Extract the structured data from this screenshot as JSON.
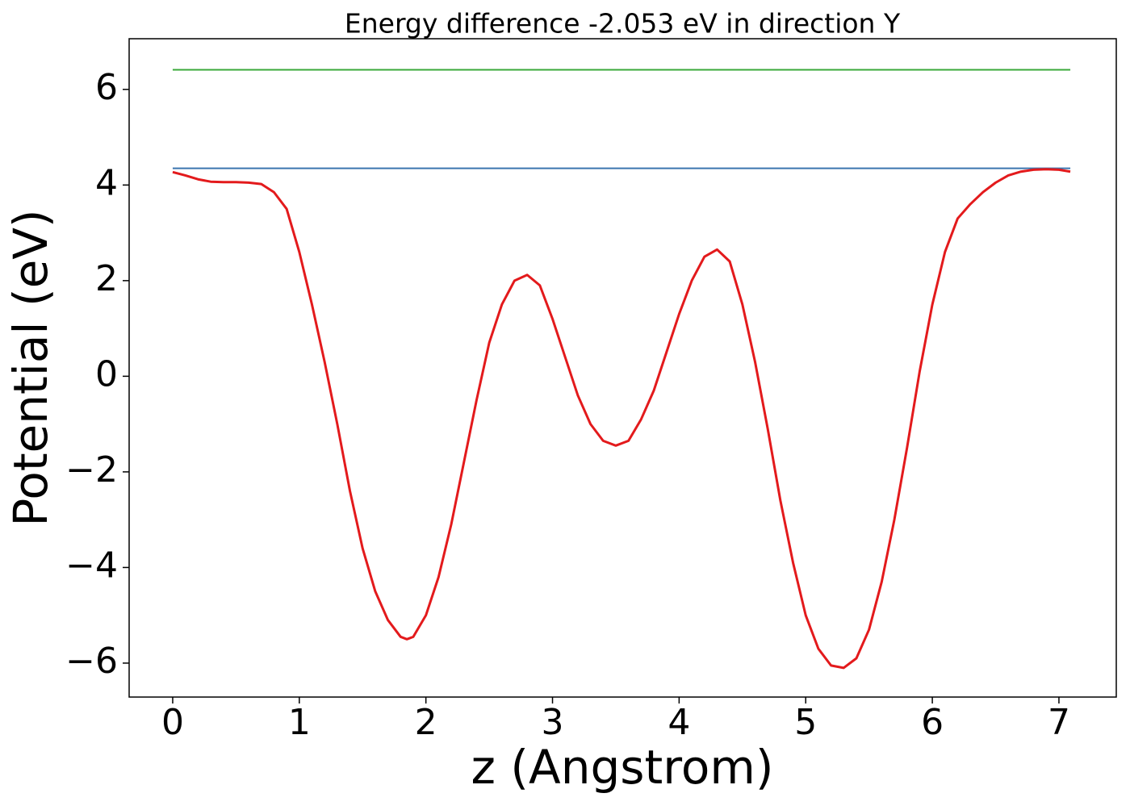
{
  "chart_data": {
    "type": "line",
    "title": "Energy difference -2.053 eV in direction Y",
    "xlabel": "z (Angstrom)",
    "ylabel": "Potential (eV)",
    "xlim": [
      -0.344,
      7.453
    ],
    "ylim": [
      -6.71,
      7.06
    ],
    "xticks": [
      0,
      1,
      2,
      3,
      4,
      5,
      6,
      7
    ],
    "yticks": [
      {
        "value": -6,
        "label": "−6"
      },
      {
        "value": -4,
        "label": "−4"
      },
      {
        "value": -2,
        "label": "−2"
      },
      0,
      2,
      4,
      6
    ],
    "grid": false,
    "series": [
      {
        "color": "#3b75af",
        "x": [
          0,
          7.09
        ],
        "values": [
          4.35,
          4.35
        ]
      },
      {
        "color": "#3aa83a",
        "x": [
          0,
          7.09
        ],
        "values": [
          6.41,
          6.41
        ]
      },
      {
        "color": "#e31a1c",
        "x": [
          0,
          0.1,
          0.2,
          0.3,
          0.4,
          0.5,
          0.6,
          0.7,
          0.8,
          0.9,
          1.0,
          1.1,
          1.2,
          1.3,
          1.4,
          1.5,
          1.6,
          1.7,
          1.8,
          1.85,
          1.9,
          2.0,
          2.1,
          2.2,
          2.3,
          2.4,
          2.5,
          2.6,
          2.7,
          2.8,
          2.9,
          3.0,
          3.1,
          3.2,
          3.3,
          3.4,
          3.5,
          3.6,
          3.7,
          3.8,
          3.9,
          4.0,
          4.1,
          4.2,
          4.3,
          4.4,
          4.5,
          4.6,
          4.7,
          4.8,
          4.9,
          5.0,
          5.1,
          5.2,
          5.3,
          5.4,
          5.5,
          5.6,
          5.7,
          5.8,
          5.9,
          6.0,
          6.1,
          6.2,
          6.3,
          6.4,
          6.5,
          6.6,
          6.7,
          6.8,
          6.9,
          7.0,
          7.09
        ],
        "values": [
          4.27,
          4.2,
          4.12,
          4.07,
          4.06,
          4.06,
          4.05,
          4.02,
          3.85,
          3.5,
          2.6,
          1.5,
          0.3,
          -1.0,
          -2.4,
          -3.6,
          -4.5,
          -5.1,
          -5.45,
          -5.5,
          -5.45,
          -5.0,
          -4.2,
          -3.1,
          -1.8,
          -0.5,
          0.7,
          1.5,
          2.0,
          2.12,
          1.9,
          1.2,
          0.4,
          -0.4,
          -1.0,
          -1.35,
          -1.45,
          -1.35,
          -0.9,
          -0.3,
          0.5,
          1.3,
          2.0,
          2.5,
          2.65,
          2.4,
          1.5,
          0.3,
          -1.1,
          -2.6,
          -3.9,
          -5.0,
          -5.7,
          -6.05,
          -6.1,
          -5.9,
          -5.3,
          -4.3,
          -3.0,
          -1.5,
          0.1,
          1.5,
          2.6,
          3.3,
          3.6,
          3.85,
          4.05,
          4.2,
          4.28,
          4.32,
          4.33,
          4.32,
          4.28
        ]
      }
    ]
  }
}
